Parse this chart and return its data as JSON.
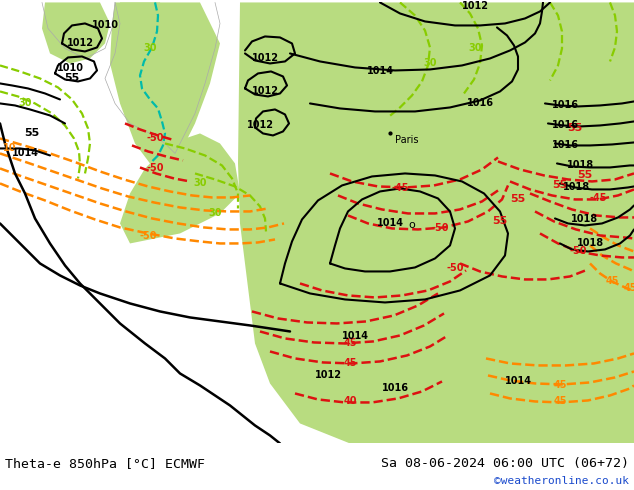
{
  "title_left": "Theta-e 850hPa [°C] ECMWF",
  "title_right": "Sa 08-06-2024 06:00 UTC (06+72)",
  "credit": "©weatheronline.co.uk",
  "bg_map_green": "#b8dc80",
  "bg_gray": "#d8d8d8",
  "bg_white_land": "#f0f0f0",
  "bottom_bar": "#ffffff",
  "title_color": "#000000",
  "credit_color": "#1a4acc",
  "coastline_color": "#aaaaaa",
  "black_contour_color": "#000000",
  "yellow_green_color": "#88cc00",
  "cyan_color": "#00bbaa",
  "orange_color": "#ff8800",
  "red_color": "#dd1111",
  "dark_orange_color": "#dd6600"
}
